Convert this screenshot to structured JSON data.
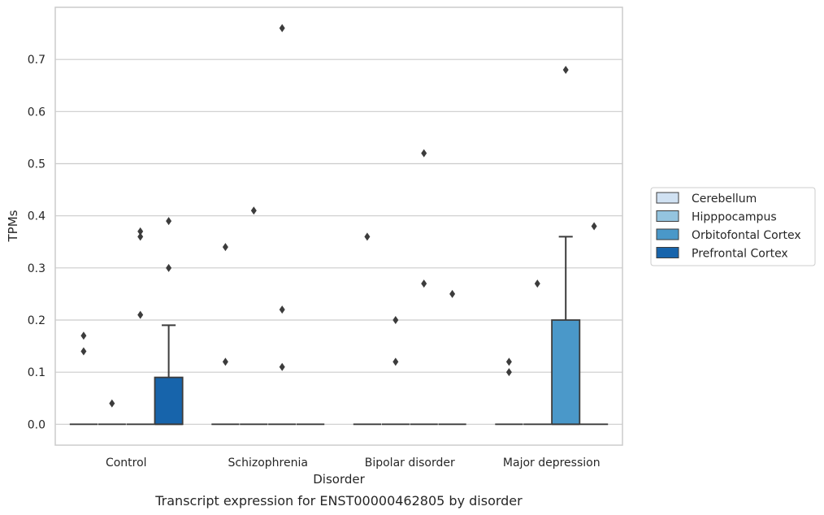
{
  "chart_data": {
    "type": "box",
    "xlabel": "Disorder",
    "ylabel": "TPMs",
    "caption": "Transcript expression for ENST00000462805 by disorder",
    "categories": [
      "Control",
      "Schizophrenia",
      "Bipolar disorder",
      "Major depression"
    ],
    "ylim": [
      -0.04,
      0.8
    ],
    "yticks": [
      0.0,
      0.1,
      0.2,
      0.3,
      0.4,
      0.5,
      0.6,
      0.7
    ],
    "ytick_labels": [
      "0.0",
      "0.1",
      "0.2",
      "0.3",
      "0.4",
      "0.5",
      "0.6",
      "0.7"
    ],
    "grid": "horizontal",
    "legend_position": "right",
    "series": [
      {
        "name": "Cerebellum",
        "color": "#d0e1f2",
        "boxes": [
          {
            "category": "Control",
            "q1": 0,
            "median": 0,
            "q3": 0,
            "whisker_low": 0,
            "whisker_high": 0,
            "outliers": [
              0.17,
              0.14
            ]
          },
          {
            "category": "Schizophrenia",
            "q1": 0,
            "median": 0,
            "q3": 0,
            "whisker_low": 0,
            "whisker_high": 0,
            "outliers": [
              0.34,
              0.12
            ]
          },
          {
            "category": "Bipolar disorder",
            "q1": 0,
            "median": 0,
            "q3": 0,
            "whisker_low": 0,
            "whisker_high": 0,
            "outliers": [
              0.36
            ]
          },
          {
            "category": "Major depression",
            "q1": 0,
            "median": 0,
            "q3": 0,
            "whisker_low": 0,
            "whisker_high": 0,
            "outliers": [
              0.12,
              0.1
            ]
          }
        ]
      },
      {
        "name": "Hipppocampus",
        "color": "#94c4df",
        "boxes": [
          {
            "category": "Control",
            "q1": 0,
            "median": 0,
            "q3": 0,
            "whisker_low": 0,
            "whisker_high": 0,
            "outliers": [
              0.04
            ]
          },
          {
            "category": "Schizophrenia",
            "q1": 0,
            "median": 0,
            "q3": 0,
            "whisker_low": 0,
            "whisker_high": 0,
            "outliers": [
              0.41
            ]
          },
          {
            "category": "Bipolar disorder",
            "q1": 0,
            "median": 0,
            "q3": 0,
            "whisker_low": 0,
            "whisker_high": 0,
            "outliers": [
              0.2,
              0.12
            ]
          },
          {
            "category": "Major depression",
            "q1": 0,
            "median": 0,
            "q3": 0,
            "whisker_low": 0,
            "whisker_high": 0,
            "outliers": [
              0.27
            ]
          }
        ]
      },
      {
        "name": "Orbitofontal Cortex",
        "color": "#4a98c9",
        "boxes": [
          {
            "category": "Control",
            "q1": 0,
            "median": 0,
            "q3": 0,
            "whisker_low": 0,
            "whisker_high": 0,
            "outliers": [
              0.37,
              0.36,
              0.21
            ]
          },
          {
            "category": "Schizophrenia",
            "q1": 0,
            "median": 0,
            "q3": 0,
            "whisker_low": 0,
            "whisker_high": 0,
            "outliers": [
              0.76,
              0.22,
              0.11
            ]
          },
          {
            "category": "Bipolar disorder",
            "q1": 0,
            "median": 0,
            "q3": 0,
            "whisker_low": 0,
            "whisker_high": 0,
            "outliers": [
              0.52,
              0.27
            ]
          },
          {
            "category": "Major depression",
            "q1": 0,
            "median": 0,
            "q3": 0.2,
            "whisker_low": 0,
            "whisker_high": 0.36,
            "outliers": [
              0.68
            ]
          }
        ]
      },
      {
        "name": "Prefrontal Cortex",
        "color": "#1764ab",
        "boxes": [
          {
            "category": "Control",
            "q1": 0,
            "median": 0,
            "q3": 0.09,
            "whisker_low": 0,
            "whisker_high": 0.19,
            "outliers": [
              0.39,
              0.3
            ]
          },
          {
            "category": "Schizophrenia",
            "q1": 0,
            "median": 0,
            "q3": 0,
            "whisker_low": 0,
            "whisker_high": 0,
            "outliers": []
          },
          {
            "category": "Bipolar disorder",
            "q1": 0,
            "median": 0,
            "q3": 0,
            "whisker_low": 0,
            "whisker_high": 0,
            "outliers": [
              0.25
            ]
          },
          {
            "category": "Major depression",
            "q1": 0,
            "median": 0,
            "q3": 0,
            "whisker_low": 0,
            "whisker_high": 0,
            "outliers": [
              0.38
            ]
          }
        ]
      }
    ]
  }
}
